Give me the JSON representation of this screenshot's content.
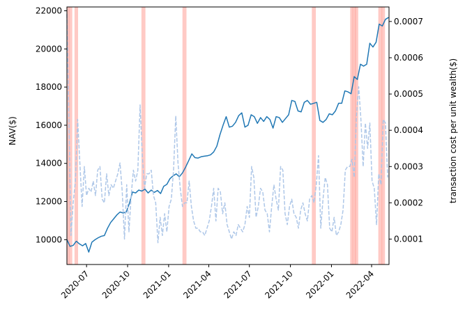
{
  "chart_data": {
    "type": "line",
    "title": "",
    "xlabel": "",
    "ylabel_left": "NAV($)",
    "ylabel_right": "transaction cost per unit wealth($)",
    "x_axis": {
      "start": "2020-05-18",
      "end": "2022-05-10",
      "ticks": [
        "2020-07",
        "2020-10",
        "2021-01",
        "2021-04",
        "2021-07",
        "2021-10",
        "2022-01",
        "2022-04"
      ],
      "tick_dates": [
        "2020-07-01",
        "2020-10-01",
        "2021-01-01",
        "2021-04-01",
        "2021-07-01",
        "2021-10-01",
        "2022-01-01",
        "2022-04-01"
      ],
      "tick_rotation_deg": 45
    },
    "y_left": {
      "range": [
        8700,
        22200
      ],
      "ticks": [
        10000,
        12000,
        14000,
        16000,
        18000,
        20000,
        22000
      ]
    },
    "y_right": {
      "range": [
        3e-05,
        0.00074
      ],
      "ticks": [
        0.0001,
        0.0002,
        0.0003,
        0.0004,
        0.0005,
        0.0006,
        0.0007
      ],
      "tick_labels": [
        "0.0001",
        "0.0002",
        "0.0003",
        "0.0004",
        "0.0005",
        "0.0006",
        "0.0007"
      ]
    },
    "shaded_periods": [
      {
        "start": "2020-05-18",
        "end": "2020-05-24",
        "color": "#ffa69e"
      },
      {
        "start": "2020-05-22",
        "end": "2020-05-30",
        "color": "#ffa69e"
      },
      {
        "start": "2020-06-04",
        "end": "2020-06-12",
        "color": "#ffa69e"
      },
      {
        "start": "2020-11-01",
        "end": "2020-11-10",
        "color": "#ffa69e"
      },
      {
        "start": "2021-02-01",
        "end": "2021-02-10",
        "color": "#ffa69e"
      },
      {
        "start": "2021-11-18",
        "end": "2021-11-27",
        "color": "#ffa69e"
      },
      {
        "start": "2022-02-12",
        "end": "2022-02-19",
        "color": "#ffa69e"
      },
      {
        "start": "2022-02-17",
        "end": "2022-02-25",
        "color": "#ffa69e"
      },
      {
        "start": "2022-02-22",
        "end": "2022-03-02",
        "color": "#ffa69e"
      },
      {
        "start": "2022-04-16",
        "end": "2022-04-25",
        "color": "#ffa69e"
      },
      {
        "start": "2022-04-23",
        "end": "2022-05-01",
        "color": "#ffa69e"
      }
    ],
    "series": [
      {
        "axis": "left",
        "style": "solid",
        "color": "#1f77b4",
        "x": [
          "2020-05-18",
          "2020-05-25",
          "2020-06-01",
          "2020-06-08",
          "2020-06-15",
          "2020-06-22",
          "2020-06-29",
          "2020-07-06",
          "2020-07-13",
          "2020-07-20",
          "2020-07-27",
          "2020-08-03",
          "2020-08-10",
          "2020-08-17",
          "2020-08-24",
          "2020-08-31",
          "2020-09-07",
          "2020-09-14",
          "2020-09-21",
          "2020-09-28",
          "2020-10-05",
          "2020-10-12",
          "2020-10-19",
          "2020-10-26",
          "2020-11-02",
          "2020-11-09",
          "2020-11-16",
          "2020-11-23",
          "2020-11-30",
          "2020-12-07",
          "2020-12-14",
          "2020-12-21",
          "2020-12-28",
          "2021-01-04",
          "2021-01-11",
          "2021-01-18",
          "2021-01-25",
          "2021-02-01",
          "2021-02-08",
          "2021-02-15",
          "2021-02-22",
          "2021-03-01",
          "2021-03-08",
          "2021-03-15",
          "2021-03-22",
          "2021-03-29",
          "2021-04-05",
          "2021-04-12",
          "2021-04-19",
          "2021-04-26",
          "2021-05-03",
          "2021-05-10",
          "2021-05-17",
          "2021-05-24",
          "2021-05-31",
          "2021-06-07",
          "2021-06-14",
          "2021-06-21",
          "2021-06-28",
          "2021-07-05",
          "2021-07-12",
          "2021-07-19",
          "2021-07-26",
          "2021-08-02",
          "2021-08-09",
          "2021-08-16",
          "2021-08-23",
          "2021-08-30",
          "2021-09-06",
          "2021-09-13",
          "2021-09-20",
          "2021-09-27",
          "2021-10-04",
          "2021-10-11",
          "2021-10-18",
          "2021-10-25",
          "2021-11-01",
          "2021-11-08",
          "2021-11-15",
          "2021-11-22",
          "2021-11-29",
          "2021-12-06",
          "2021-12-13",
          "2021-12-20",
          "2021-12-27",
          "2022-01-03",
          "2022-01-10",
          "2022-01-17",
          "2022-01-24",
          "2022-01-31",
          "2022-02-07",
          "2022-02-14",
          "2022-02-21",
          "2022-02-28",
          "2022-03-07",
          "2022-03-14",
          "2022-03-21",
          "2022-03-28",
          "2022-04-04",
          "2022-04-11",
          "2022-04-18",
          "2022-04-25",
          "2022-05-02",
          "2022-05-09"
        ],
        "values": [
          10000,
          9650,
          9700,
          9920,
          9780,
          9680,
          9800,
          9350,
          9870,
          10000,
          10100,
          10180,
          10220,
          10600,
          10900,
          11100,
          11300,
          11450,
          11400,
          11450,
          11900,
          12500,
          12450,
          12600,
          12550,
          12650,
          12450,
          12600,
          12480,
          12580,
          12420,
          12800,
          12900,
          13200,
          13350,
          13450,
          13300,
          13500,
          13800,
          14150,
          14500,
          14300,
          14280,
          14350,
          14380,
          14400,
          14450,
          14600,
          14900,
          15500,
          16000,
          16450,
          15900,
          15950,
          16150,
          16500,
          16650,
          15900,
          16000,
          16550,
          16450,
          16100,
          16400,
          16200,
          16450,
          16300,
          15850,
          16450,
          16400,
          16150,
          16350,
          16550,
          17300,
          17250,
          16750,
          16700,
          17200,
          17300,
          17100,
          17150,
          17200,
          16250,
          16150,
          16300,
          16600,
          16550,
          16750,
          17150,
          17150,
          17800,
          17750,
          17650,
          18550,
          18400,
          19200,
          19100,
          19200,
          20300,
          20100,
          20350,
          21300,
          21200,
          21550,
          21650
        ]
      },
      {
        "axis": "right",
        "style": "dashed",
        "color": "#aec7e8",
        "x": [
          "2020-05-18",
          "2020-05-22",
          "2020-05-27",
          "2020-06-01",
          "2020-06-06",
          "2020-06-11",
          "2020-06-16",
          "2020-06-21",
          "2020-06-26",
          "2020-07-01",
          "2020-07-06",
          "2020-07-11",
          "2020-07-16",
          "2020-07-21",
          "2020-07-26",
          "2020-07-31",
          "2020-08-05",
          "2020-08-10",
          "2020-08-15",
          "2020-08-20",
          "2020-08-25",
          "2020-08-30",
          "2020-09-04",
          "2020-09-09",
          "2020-09-14",
          "2020-09-19",
          "2020-09-24",
          "2020-09-29",
          "2020-10-04",
          "2020-10-09",
          "2020-10-14",
          "2020-10-19",
          "2020-10-24",
          "2020-10-29",
          "2020-11-03",
          "2020-11-08",
          "2020-11-13",
          "2020-11-18",
          "2020-11-23",
          "2020-11-28",
          "2020-12-03",
          "2020-12-08",
          "2020-12-13",
          "2020-12-18",
          "2020-12-23",
          "2020-12-28",
          "2021-01-02",
          "2021-01-07",
          "2021-01-12",
          "2021-01-17",
          "2021-01-22",
          "2021-01-27",
          "2021-02-01",
          "2021-02-06",
          "2021-02-11",
          "2021-02-16",
          "2021-02-21",
          "2021-02-26",
          "2021-03-03",
          "2021-03-08",
          "2021-03-13",
          "2021-03-18",
          "2021-03-23",
          "2021-03-28",
          "2021-04-02",
          "2021-04-07",
          "2021-04-12",
          "2021-04-17",
          "2021-04-22",
          "2021-04-27",
          "2021-05-02",
          "2021-05-07",
          "2021-05-12",
          "2021-05-17",
          "2021-05-22",
          "2021-05-27",
          "2021-06-01",
          "2021-06-06",
          "2021-06-11",
          "2021-06-16",
          "2021-06-21",
          "2021-06-26",
          "2021-07-01",
          "2021-07-06",
          "2021-07-11",
          "2021-07-16",
          "2021-07-21",
          "2021-07-26",
          "2021-07-31",
          "2021-08-05",
          "2021-08-10",
          "2021-08-15",
          "2021-08-20",
          "2021-08-25",
          "2021-08-30",
          "2021-09-04",
          "2021-09-09",
          "2021-09-14",
          "2021-09-19",
          "2021-09-24",
          "2021-09-29",
          "2021-10-04",
          "2021-10-09",
          "2021-10-14",
          "2021-10-19",
          "2021-10-24",
          "2021-10-29",
          "2021-11-03",
          "2021-11-08",
          "2021-11-13",
          "2021-11-18",
          "2021-11-23",
          "2021-11-28",
          "2021-12-03",
          "2021-12-08",
          "2021-12-13",
          "2021-12-18",
          "2021-12-23",
          "2021-12-28",
          "2022-01-02",
          "2022-01-07",
          "2022-01-12",
          "2022-01-17",
          "2022-01-22",
          "2022-01-27",
          "2022-02-01",
          "2022-02-06",
          "2022-02-11",
          "2022-02-16",
          "2022-02-21",
          "2022-02-26",
          "2022-03-03",
          "2022-03-08",
          "2022-03-13",
          "2022-03-18",
          "2022-03-23",
          "2022-03-28",
          "2022-04-02",
          "2022-04-07",
          "2022-04-12",
          "2022-04-17",
          "2022-04-22",
          "2022-04-27",
          "2022-05-02",
          "2022-05-07"
        ],
        "values": [
          0.00072,
          0.00046,
          0.00011,
          0.0002,
          0.00026,
          0.00043,
          0.00031,
          0.00019,
          0.0003,
          0.00022,
          0.00024,
          0.00023,
          0.00026,
          0.00022,
          0.00029,
          0.0003,
          0.00021,
          0.0002,
          0.00028,
          0.00022,
          0.00025,
          0.00024,
          0.00026,
          0.00028,
          0.00031,
          0.00023,
          0.0001,
          0.00025,
          0.00012,
          0.00022,
          0.00029,
          0.00026,
          0.00029,
          0.00047,
          0.00033,
          0.00024,
          0.00028,
          0.00028,
          0.00029,
          0.00022,
          0.0002,
          9e-05,
          0.00016,
          0.00011,
          0.00017,
          0.00012,
          0.00019,
          0.00021,
          0.00029,
          0.00044,
          0.00031,
          0.00024,
          0.00019,
          0.0002,
          0.0002,
          0.00026,
          0.00019,
          0.00015,
          0.00013,
          0.00013,
          0.00012,
          0.00012,
          0.00011,
          0.00013,
          0.00015,
          0.00019,
          0.00024,
          0.00015,
          0.00024,
          0.00023,
          0.00017,
          0.0002,
          0.00014,
          0.00012,
          0.0001,
          0.00012,
          0.00011,
          0.00014,
          0.00013,
          0.00012,
          0.00014,
          0.00019,
          0.00016,
          0.0003,
          0.00027,
          0.00016,
          0.00019,
          0.00024,
          0.00023,
          0.00018,
          0.00017,
          0.00012,
          0.00019,
          0.00025,
          0.00021,
          0.00018,
          0.0003,
          0.00029,
          0.00017,
          0.00014,
          0.00019,
          0.00021,
          0.00017,
          0.00016,
          0.00013,
          0.00018,
          0.0002,
          0.00017,
          0.00015,
          0.00021,
          0.00022,
          0.0002,
          0.00025,
          0.00033,
          0.00013,
          0.00021,
          0.00027,
          0.00025,
          0.00013,
          0.00012,
          0.00016,
          0.00011,
          0.00012,
          0.00014,
          0.00018,
          0.00029,
          0.0003,
          0.0003,
          0.00032,
          0.00027,
          0.00044,
          0.00052,
          0.00043,
          0.0003,
          0.00042,
          0.00035,
          0.00042,
          0.00026,
          0.00024,
          0.00014,
          0.00028,
          0.00025,
          0.00043,
          0.00042,
          0.00027
        ]
      }
    ]
  }
}
